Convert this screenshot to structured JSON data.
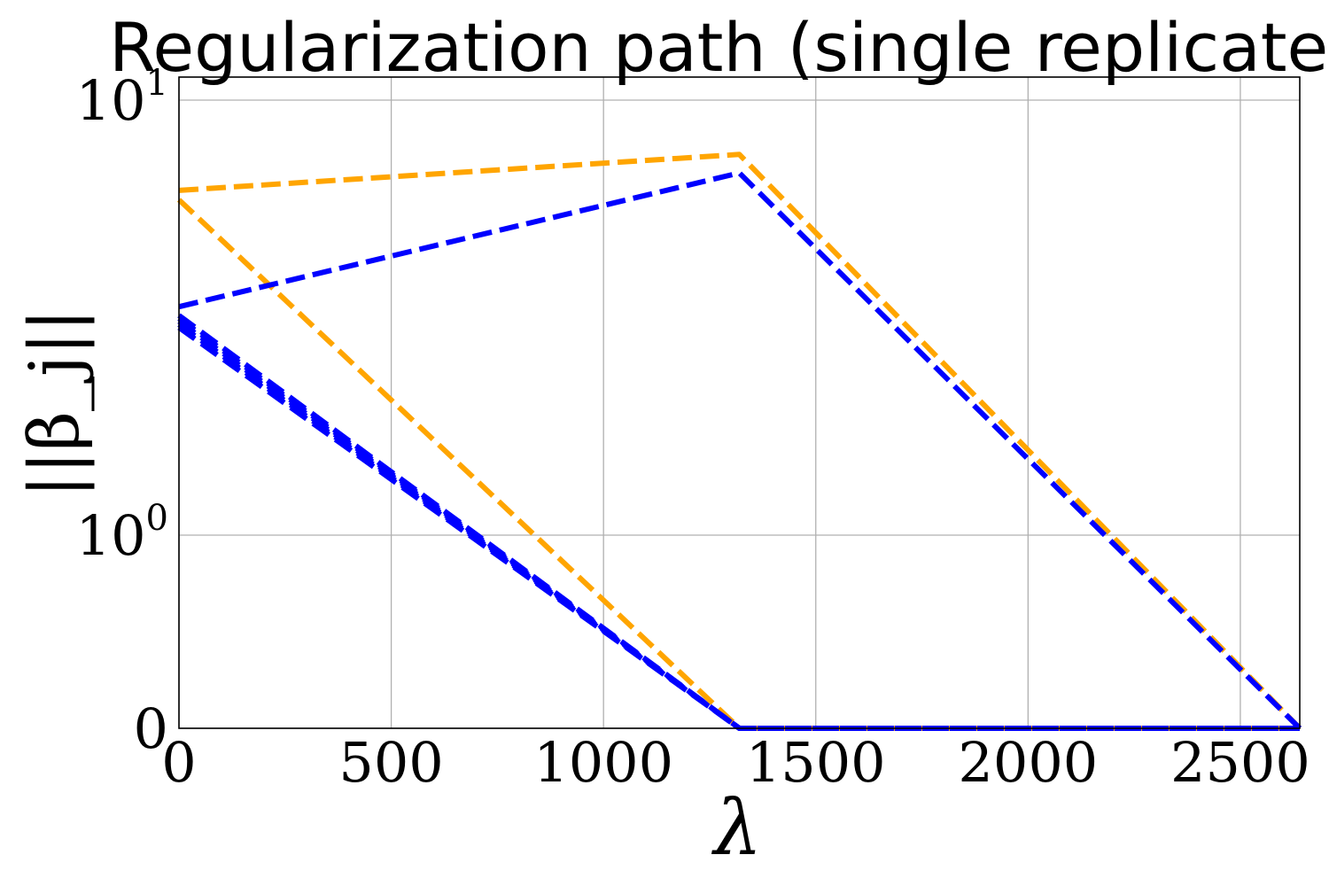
{
  "chart_data": {
    "type": "line",
    "title": "Regularization path (single replicate)",
    "xlabel": "λ",
    "ylabel": "||β_j||",
    "x_scale": "linear",
    "y_scale": "symlog",
    "xlim": [
      0,
      2640
    ],
    "ylim": [
      0,
      12
    ],
    "grid": true,
    "legend": "none",
    "x_ticks": [
      {
        "value": 0,
        "label": "0"
      },
      {
        "value": 500,
        "label": "500"
      },
      {
        "value": 1000,
        "label": "1000"
      },
      {
        "value": 1500,
        "label": "1500"
      },
      {
        "value": 2000,
        "label": "2000"
      },
      {
        "value": 2500,
        "label": "2500"
      }
    ],
    "y_ticks": [
      {
        "value": 0,
        "label": "0",
        "base": "",
        "exp": ""
      },
      {
        "value": 1,
        "label": "10^0",
        "base": "10",
        "exp": "0"
      },
      {
        "value": 10,
        "label": "10^1",
        "base": "10",
        "exp": "1"
      }
    ],
    "series": [
      {
        "color": "#ffa500",
        "x": [
          0,
          1320,
          2640
        ],
        "y": [
          6.2,
          7.5,
          0
        ]
      },
      {
        "color": "#ffa500",
        "x": [
          0,
          1320,
          2640
        ],
        "y": [
          5.9,
          0,
          0
        ]
      },
      {
        "color": "#0000ff",
        "x": [
          0,
          1320,
          2640
        ],
        "y": [
          3.35,
          6.8,
          0
        ]
      },
      {
        "color": "#0000ff",
        "x": [
          0,
          1320,
          2640
        ],
        "y": [
          3.2,
          0,
          0
        ]
      },
      {
        "color": "#0000ff",
        "x": [
          0,
          1320,
          2640
        ],
        "y": [
          3.15,
          0,
          0
        ]
      },
      {
        "color": "#0000ff",
        "x": [
          0,
          1320,
          2640
        ],
        "y": [
          3.1,
          0,
          0
        ]
      },
      {
        "color": "#0000ff",
        "x": [
          0,
          1320,
          2640
        ],
        "y": [
          3.05,
          0,
          0
        ]
      },
      {
        "color": "#0000ff",
        "x": [
          0,
          1320,
          2640
        ],
        "y": [
          3.0,
          0,
          0
        ]
      }
    ]
  }
}
